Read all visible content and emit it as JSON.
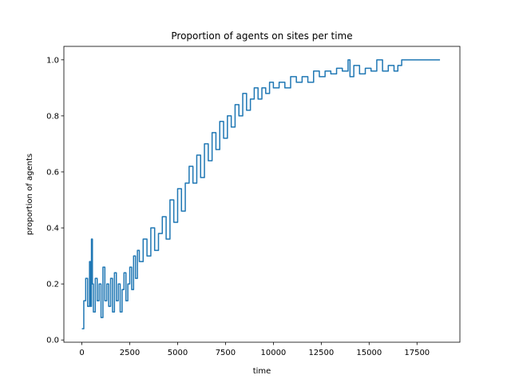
{
  "chart_data": {
    "type": "line",
    "title": "Proportion of agents on sites per time",
    "xlabel": "time",
    "ylabel": "proportion of agents",
    "xlim": [
      -940,
      19740
    ],
    "ylim": [
      -0.008,
      1.048
    ],
    "xticks": [
      0,
      2500,
      5000,
      7500,
      10000,
      12500,
      15000,
      17500
    ],
    "xtick_labels": [
      "0",
      "2500",
      "5000",
      "7500",
      "10000",
      "12500",
      "15000",
      "17500"
    ],
    "yticks": [
      0.0,
      0.2,
      0.4,
      0.6,
      0.8,
      1.0
    ],
    "ytick_labels": [
      "0.0",
      "0.2",
      "0.4",
      "0.6",
      "0.8",
      "1.0"
    ],
    "grid": false,
    "color": "#1f77b4",
    "series": [
      {
        "x": [
          0,
          100,
          200,
          300,
          400,
          450,
          500,
          550,
          600,
          700,
          800,
          900,
          1000,
          1100,
          1200,
          1300,
          1400,
          1500,
          1600,
          1700,
          1800,
          1900,
          2000,
          2100,
          2200,
          2300,
          2400,
          2500,
          2600,
          2700,
          2800,
          2900,
          3000,
          3200,
          3400,
          3600,
          3800,
          4000,
          4200,
          4400,
          4600,
          4800,
          5000,
          5200,
          5400,
          5600,
          5800,
          6000,
          6200,
          6400,
          6600,
          6800,
          7000,
          7200,
          7400,
          7600,
          7800,
          8000,
          8200,
          8400,
          8600,
          8800,
          9000,
          9200,
          9400,
          9600,
          9800,
          10000,
          10300,
          10600,
          10900,
          11200,
          11500,
          11800,
          12100,
          12400,
          12700,
          13000,
          13300,
          13600,
          13900,
          14000,
          14200,
          14500,
          14800,
          15100,
          15400,
          15700,
          16000,
          16300,
          16500,
          16700,
          17200,
          17800,
          18400,
          18700
        ],
        "y": [
          0.04,
          0.14,
          0.22,
          0.12,
          0.28,
          0.12,
          0.36,
          0.2,
          0.1,
          0.22,
          0.14,
          0.2,
          0.08,
          0.26,
          0.14,
          0.2,
          0.12,
          0.22,
          0.1,
          0.24,
          0.14,
          0.2,
          0.1,
          0.18,
          0.24,
          0.14,
          0.2,
          0.26,
          0.18,
          0.3,
          0.22,
          0.32,
          0.28,
          0.36,
          0.3,
          0.4,
          0.32,
          0.38,
          0.44,
          0.36,
          0.5,
          0.42,
          0.54,
          0.46,
          0.56,
          0.62,
          0.56,
          0.66,
          0.58,
          0.7,
          0.64,
          0.74,
          0.68,
          0.78,
          0.72,
          0.8,
          0.76,
          0.84,
          0.8,
          0.88,
          0.82,
          0.86,
          0.9,
          0.86,
          0.9,
          0.88,
          0.92,
          0.9,
          0.92,
          0.9,
          0.94,
          0.92,
          0.94,
          0.92,
          0.96,
          0.94,
          0.96,
          0.95,
          0.97,
          0.96,
          1.0,
          0.94,
          0.98,
          0.95,
          0.97,
          0.96,
          1.0,
          0.96,
          0.98,
          0.96,
          0.98,
          1.0,
          1.0,
          1.0,
          1.0,
          1.0
        ]
      }
    ]
  }
}
